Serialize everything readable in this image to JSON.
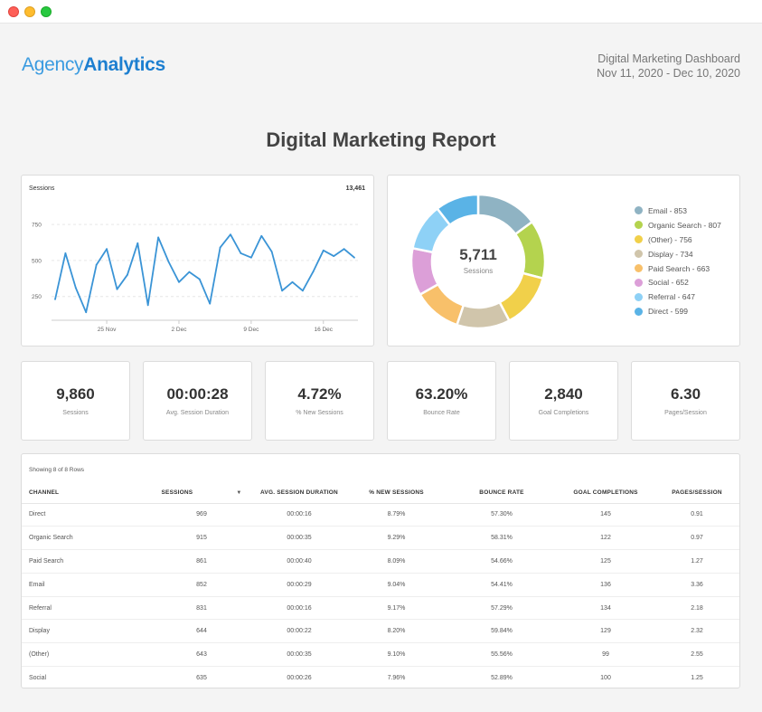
{
  "window": {
    "controls": [
      "close",
      "minimize",
      "zoom"
    ]
  },
  "brand": {
    "part1": "Agency",
    "part2": "Analytics"
  },
  "header": {
    "dashboard_name": "Digital Marketing Dashboard",
    "date_range": "Nov 11, 2020 - Dec 10, 2020"
  },
  "report": {
    "title": "Digital Marketing Report"
  },
  "line_chart": {
    "label": "Sessions",
    "total": "13,461"
  },
  "donut": {
    "center_value": "5,711",
    "center_label": "Sessions"
  },
  "kpis": [
    {
      "value": "9,860",
      "label": "Sessions"
    },
    {
      "value": "00:00:28",
      "label": "Avg. Session Duration"
    },
    {
      "value": "4.72%",
      "label": "% New Sessions"
    },
    {
      "value": "63.20%",
      "label": "Bounce Rate"
    },
    {
      "value": "2,840",
      "label": "Goal Completions"
    },
    {
      "value": "6.30",
      "label": "Pages/Session"
    }
  ],
  "table": {
    "caption": "Showing 8 of 8 Rows",
    "sort_icon": "sort-desc-caret",
    "columns": [
      "CHANNEL",
      "SESSIONS",
      "AVG. SESSION DURATION",
      "% NEW SESSIONS",
      "BOUNCE RATE",
      "GOAL COMPLETIONS",
      "PAGES/SESSION"
    ],
    "rows": [
      [
        "Direct",
        "969",
        "00:00:16",
        "8.79%",
        "57.30%",
        "145",
        "0.91"
      ],
      [
        "Organic Search",
        "915",
        "00:00:35",
        "9.29%",
        "58.31%",
        "122",
        "0.97"
      ],
      [
        "Paid Search",
        "861",
        "00:00:40",
        "8.09%",
        "54.66%",
        "125",
        "1.27"
      ],
      [
        "Email",
        "852",
        "00:00:29",
        "9.04%",
        "54.41%",
        "136",
        "3.36"
      ],
      [
        "Referral",
        "831",
        "00:00:16",
        "9.17%",
        "57.29%",
        "134",
        "2.18"
      ],
      [
        "Display",
        "644",
        "00:00:22",
        "8.20%",
        "59.84%",
        "129",
        "2.32"
      ],
      [
        "(Other)",
        "643",
        "00:00:35",
        "9.10%",
        "55.56%",
        "99",
        "2.55"
      ],
      [
        "Social",
        "635",
        "00:00:26",
        "7.96%",
        "52.89%",
        "100",
        "1.25"
      ]
    ]
  },
  "chart_data": [
    {
      "type": "line",
      "title": "Sessions",
      "xlabel": "",
      "ylabel": "",
      "y_ticks": [
        "250",
        "500",
        "750"
      ],
      "x_ticks": [
        "25 Nov",
        "2 Dec",
        "9 Dec",
        "16 Dec"
      ],
      "ylim": [
        0,
        875
      ],
      "color": "#3a94d6",
      "grid": true,
      "series": [
        {
          "values": [
            230,
            550,
            310,
            140,
            470,
            580,
            300,
            400,
            620,
            190,
            660,
            490,
            350,
            420,
            370,
            200,
            590,
            680,
            550,
            520,
            670,
            560,
            290,
            350,
            290,
            420,
            570,
            530,
            580,
            520
          ]
        }
      ]
    },
    {
      "type": "pie",
      "title": "",
      "center_value": "5,711",
      "center_label": "Sessions",
      "legend_position": "right",
      "slices": [
        {
          "label": "Email",
          "value": 853,
          "legend": "Email - 853",
          "color": "#8fb3c3"
        },
        {
          "label": "Organic Search",
          "value": 807,
          "legend": "Organic Search - 807",
          "color": "#b4d34e"
        },
        {
          "label": "(Other)",
          "value": 756,
          "legend": "(Other) - 756",
          "color": "#f1d04a"
        },
        {
          "label": "Display",
          "value": 734,
          "legend": "Display - 734",
          "color": "#d0c5ab"
        },
        {
          "label": "Paid Search",
          "value": 663,
          "legend": "Paid Search - 663",
          "color": "#f8c06a"
        },
        {
          "label": "Social",
          "value": 652,
          "legend": "Social - 652",
          "color": "#dc9fd8"
        },
        {
          "label": "Referral",
          "value": 647,
          "legend": "Referral - 647",
          "color": "#8ed1f6"
        },
        {
          "label": "Direct",
          "value": 599,
          "legend": "Direct - 599",
          "color": "#5ab3e6"
        }
      ]
    }
  ]
}
